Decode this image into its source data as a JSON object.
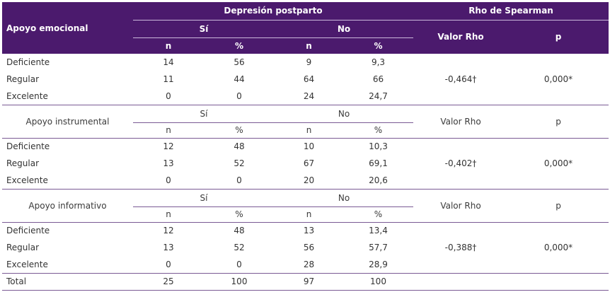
{
  "header": {
    "row_label": "Apoyo emocional",
    "group_dp": "Depresión postparto",
    "group_rho": "Rho de Spearman",
    "si": "Sí",
    "no": "No",
    "valor_rho": "Valor Rho",
    "p": "p",
    "n1": "n",
    "pct1": "%",
    "n2": "n",
    "pct2": "%"
  },
  "sections": [
    {
      "label": "Apoyo emocional",
      "rows": [
        {
          "name": "Deficiente",
          "si_n": "14",
          "si_pct": "56",
          "no_n": "9",
          "no_pct": "9,3"
        },
        {
          "name": "Regular",
          "si_n": "11",
          "si_pct": "44",
          "no_n": "64",
          "no_pct": "66"
        },
        {
          "name": "Excelente",
          "si_n": "0",
          "si_pct": "0",
          "no_n": "24",
          "no_pct": "24,7"
        }
      ],
      "rho": "-0,464†",
      "p": "0,000*"
    },
    {
      "label": "Apoyo instrumental",
      "si": "Sí",
      "no": "No",
      "valor_rho": "Valor Rho",
      "p_label": "p",
      "n1": "n",
      "pct1": "%",
      "n2": "n",
      "pct2": "%",
      "rows": [
        {
          "name": "Deficiente",
          "si_n": "12",
          "si_pct": "48",
          "no_n": "10",
          "no_pct": "10,3"
        },
        {
          "name": "Regular",
          "si_n": "13",
          "si_pct": "52",
          "no_n": "67",
          "no_pct": "69,1"
        },
        {
          "name": "Excelente",
          "si_n": "0",
          "si_pct": "0",
          "no_n": "20",
          "no_pct": "20,6"
        }
      ],
      "rho": "-0,402†",
      "p": "0,000*"
    },
    {
      "label": "Apoyo informativo",
      "si": "Sí",
      "no": "No",
      "valor_rho": "Valor Rho",
      "p_label": "p",
      "n1": "n",
      "pct1": "%",
      "n2": "n",
      "pct2": "%",
      "rows": [
        {
          "name": "Deficiente",
          "si_n": "12",
          "si_pct": "48",
          "no_n": "13",
          "no_pct": "13,4"
        },
        {
          "name": "Regular",
          "si_n": "13",
          "si_pct": "52",
          "no_n": "56",
          "no_pct": "57,7"
        },
        {
          "name": "Excelente",
          "si_n": "0",
          "si_pct": "0",
          "no_n": "28",
          "no_pct": "28,9"
        }
      ],
      "rho": "-0,388†",
      "p": "0,000*"
    }
  ],
  "total": {
    "name": "Total",
    "si_n": "25",
    "si_pct": "100",
    "no_n": "97",
    "no_pct": "100"
  },
  "colors": {
    "header_bg": "#4b1a6d",
    "line": "#7a5a94"
  }
}
